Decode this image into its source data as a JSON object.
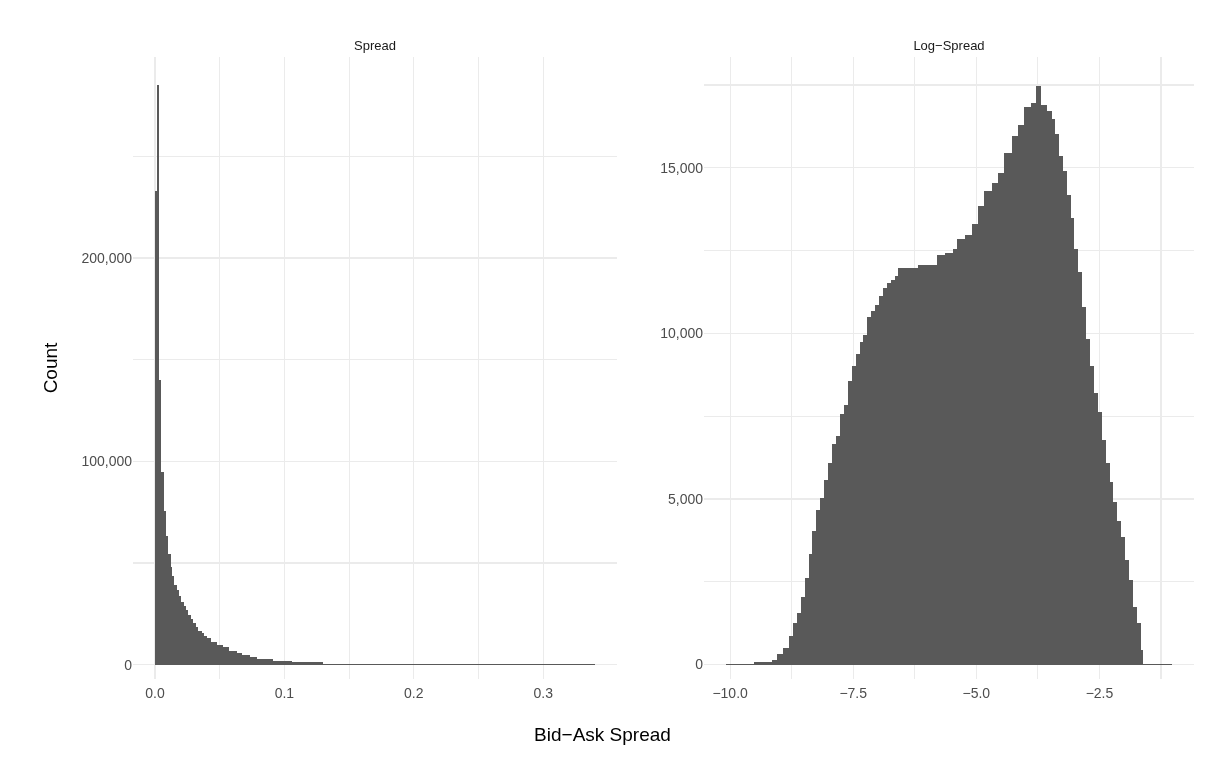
{
  "chart_data": [
    {
      "type": "histogram",
      "title": "Spread",
      "ylabel": "Count",
      "xlabel": "Bid−Ask Spread",
      "color": "#595959",
      "grid": true,
      "bins": [
        0,
        0.0015,
        0.003,
        0.0045,
        0.007,
        0.0085,
        0.01,
        0.012,
        0.0135,
        0.015,
        0.017,
        0.0185,
        0.02,
        0.0225,
        0.024,
        0.0255,
        0.0275,
        0.029,
        0.0315,
        0.0335,
        0.036,
        0.038,
        0.0405,
        0.0435,
        0.048,
        0.0525,
        0.057,
        0.063,
        0.0675,
        0.0735,
        0.079,
        0.091,
        0.106,
        0.13,
        0.143,
        0.175,
        0.34
      ],
      "values": [
        233000,
        285000,
        140000,
        95000,
        75600,
        63300,
        54300,
        48200,
        43400,
        39200,
        36700,
        33800,
        31000,
        29100,
        26700,
        24300,
        22400,
        20400,
        18500,
        16600,
        15600,
        14300,
        13100,
        11400,
        9900,
        8600,
        7000,
        5700,
        4700,
        3700,
        2800,
        2000,
        1300,
        600,
        300,
        150
      ],
      "xlim": [
        -0.017,
        0.357
      ],
      "xticks": [
        {
          "value": 0,
          "label": "0.0"
        },
        {
          "value": 0.05,
          "label": null
        },
        0.1,
        {
          "value": 0.15,
          "label": null
        },
        0.2,
        {
          "value": 0.25,
          "label": null
        },
        0.3
      ],
      "ylim": [
        -7000,
        298800
      ],
      "yticks": [
        0,
        {
          "value": 50000,
          "label": null
        },
        {
          "value": 100000,
          "label": "100,000"
        },
        {
          "value": 150000,
          "label": null
        },
        {
          "value": 200000,
          "label": "200,000"
        },
        {
          "value": 250000,
          "label": null
        }
      ]
    },
    {
      "type": "histogram",
      "title": "Log−Spread",
      "color": "#595959",
      "grid": true,
      "bins": [
        -10.08,
        -9.51,
        -9.15,
        -9.04,
        -8.92,
        -8.8,
        -8.72,
        -8.64,
        -8.56,
        -8.48,
        -8.4,
        -8.33,
        -8.25,
        -8.17,
        -8.09,
        -8.01,
        -7.93,
        -7.85,
        -7.77,
        -7.69,
        -7.61,
        -7.53,
        -7.45,
        -7.37,
        -7.3,
        -7.22,
        -7.14,
        -7.06,
        -6.98,
        -6.9,
        -6.82,
        -6.74,
        -6.66,
        -6.59,
        -6.43,
        -6.19,
        -5.95,
        -5.79,
        -5.64,
        -5.48,
        -5.4,
        -5.24,
        -5.08,
        -4.96,
        -4.84,
        -4.69,
        -4.55,
        -4.43,
        -4.27,
        -4.15,
        -4.03,
        -3.88,
        -3.78,
        -3.68,
        -3.56,
        -3.46,
        -3.4,
        -3.32,
        -3.24,
        -3.16,
        -3.08,
        -3.01,
        -2.93,
        -2.85,
        -2.77,
        -2.69,
        -2.61,
        -2.53,
        -2.45,
        -2.37,
        -2.29,
        -2.22,
        -2.14,
        -2.06,
        -1.98,
        -1.9,
        -1.82,
        -1.74,
        -1.66,
        -1.62,
        -1.03
      ],
      "values": [
        30,
        70,
        150,
        330,
        510,
        860,
        1270,
        1565,
        2035,
        2620,
        3325,
        4030,
        4675,
        5030,
        5560,
        6085,
        6675,
        6910,
        7555,
        7850,
        8555,
        9025,
        9375,
        9730,
        9965,
        10490,
        10670,
        10845,
        11140,
        11370,
        11515,
        11610,
        11725,
        11960,
        11960,
        12075,
        12075,
        12370,
        12430,
        12550,
        12840,
        12960,
        13310,
        13840,
        14310,
        14545,
        14840,
        15435,
        15955,
        16305,
        16835,
        16950,
        17480,
        16895,
        16720,
        16485,
        16015,
        15365,
        14895,
        14190,
        13485,
        12545,
        11845,
        10785,
        9845,
        9025,
        8200,
        7615,
        6790,
        6085,
        5500,
        4910,
        4325,
        3855,
        3150,
        2565,
        1740,
        1270,
        445,
        30
      ],
      "xlim": [
        -10.53,
        -0.58
      ],
      "xticks": [
        {
          "value": -10,
          "label": "−10.0"
        },
        {
          "value": -8.75,
          "label": null
        },
        {
          "value": -7.5,
          "label": "−7.5"
        },
        {
          "value": -6.25,
          "label": null
        },
        {
          "value": -5,
          "label": "−5.0"
        },
        {
          "value": -3.75,
          "label": null
        },
        {
          "value": -2.5,
          "label": "−2.5"
        },
        {
          "value": -1.25,
          "label": null
        }
      ],
      "ylim": [
        -435,
        18345
      ],
      "yticks": [
        0,
        {
          "value": 2500,
          "label": null
        },
        {
          "value": 5000,
          "label": "5,000"
        },
        {
          "value": 7500,
          "label": null
        },
        {
          "value": 10000,
          "label": "10,000"
        },
        {
          "value": 12500,
          "label": null
        },
        {
          "value": 15000,
          "label": "15,000"
        },
        {
          "value": 17500,
          "label": null
        }
      ]
    }
  ]
}
